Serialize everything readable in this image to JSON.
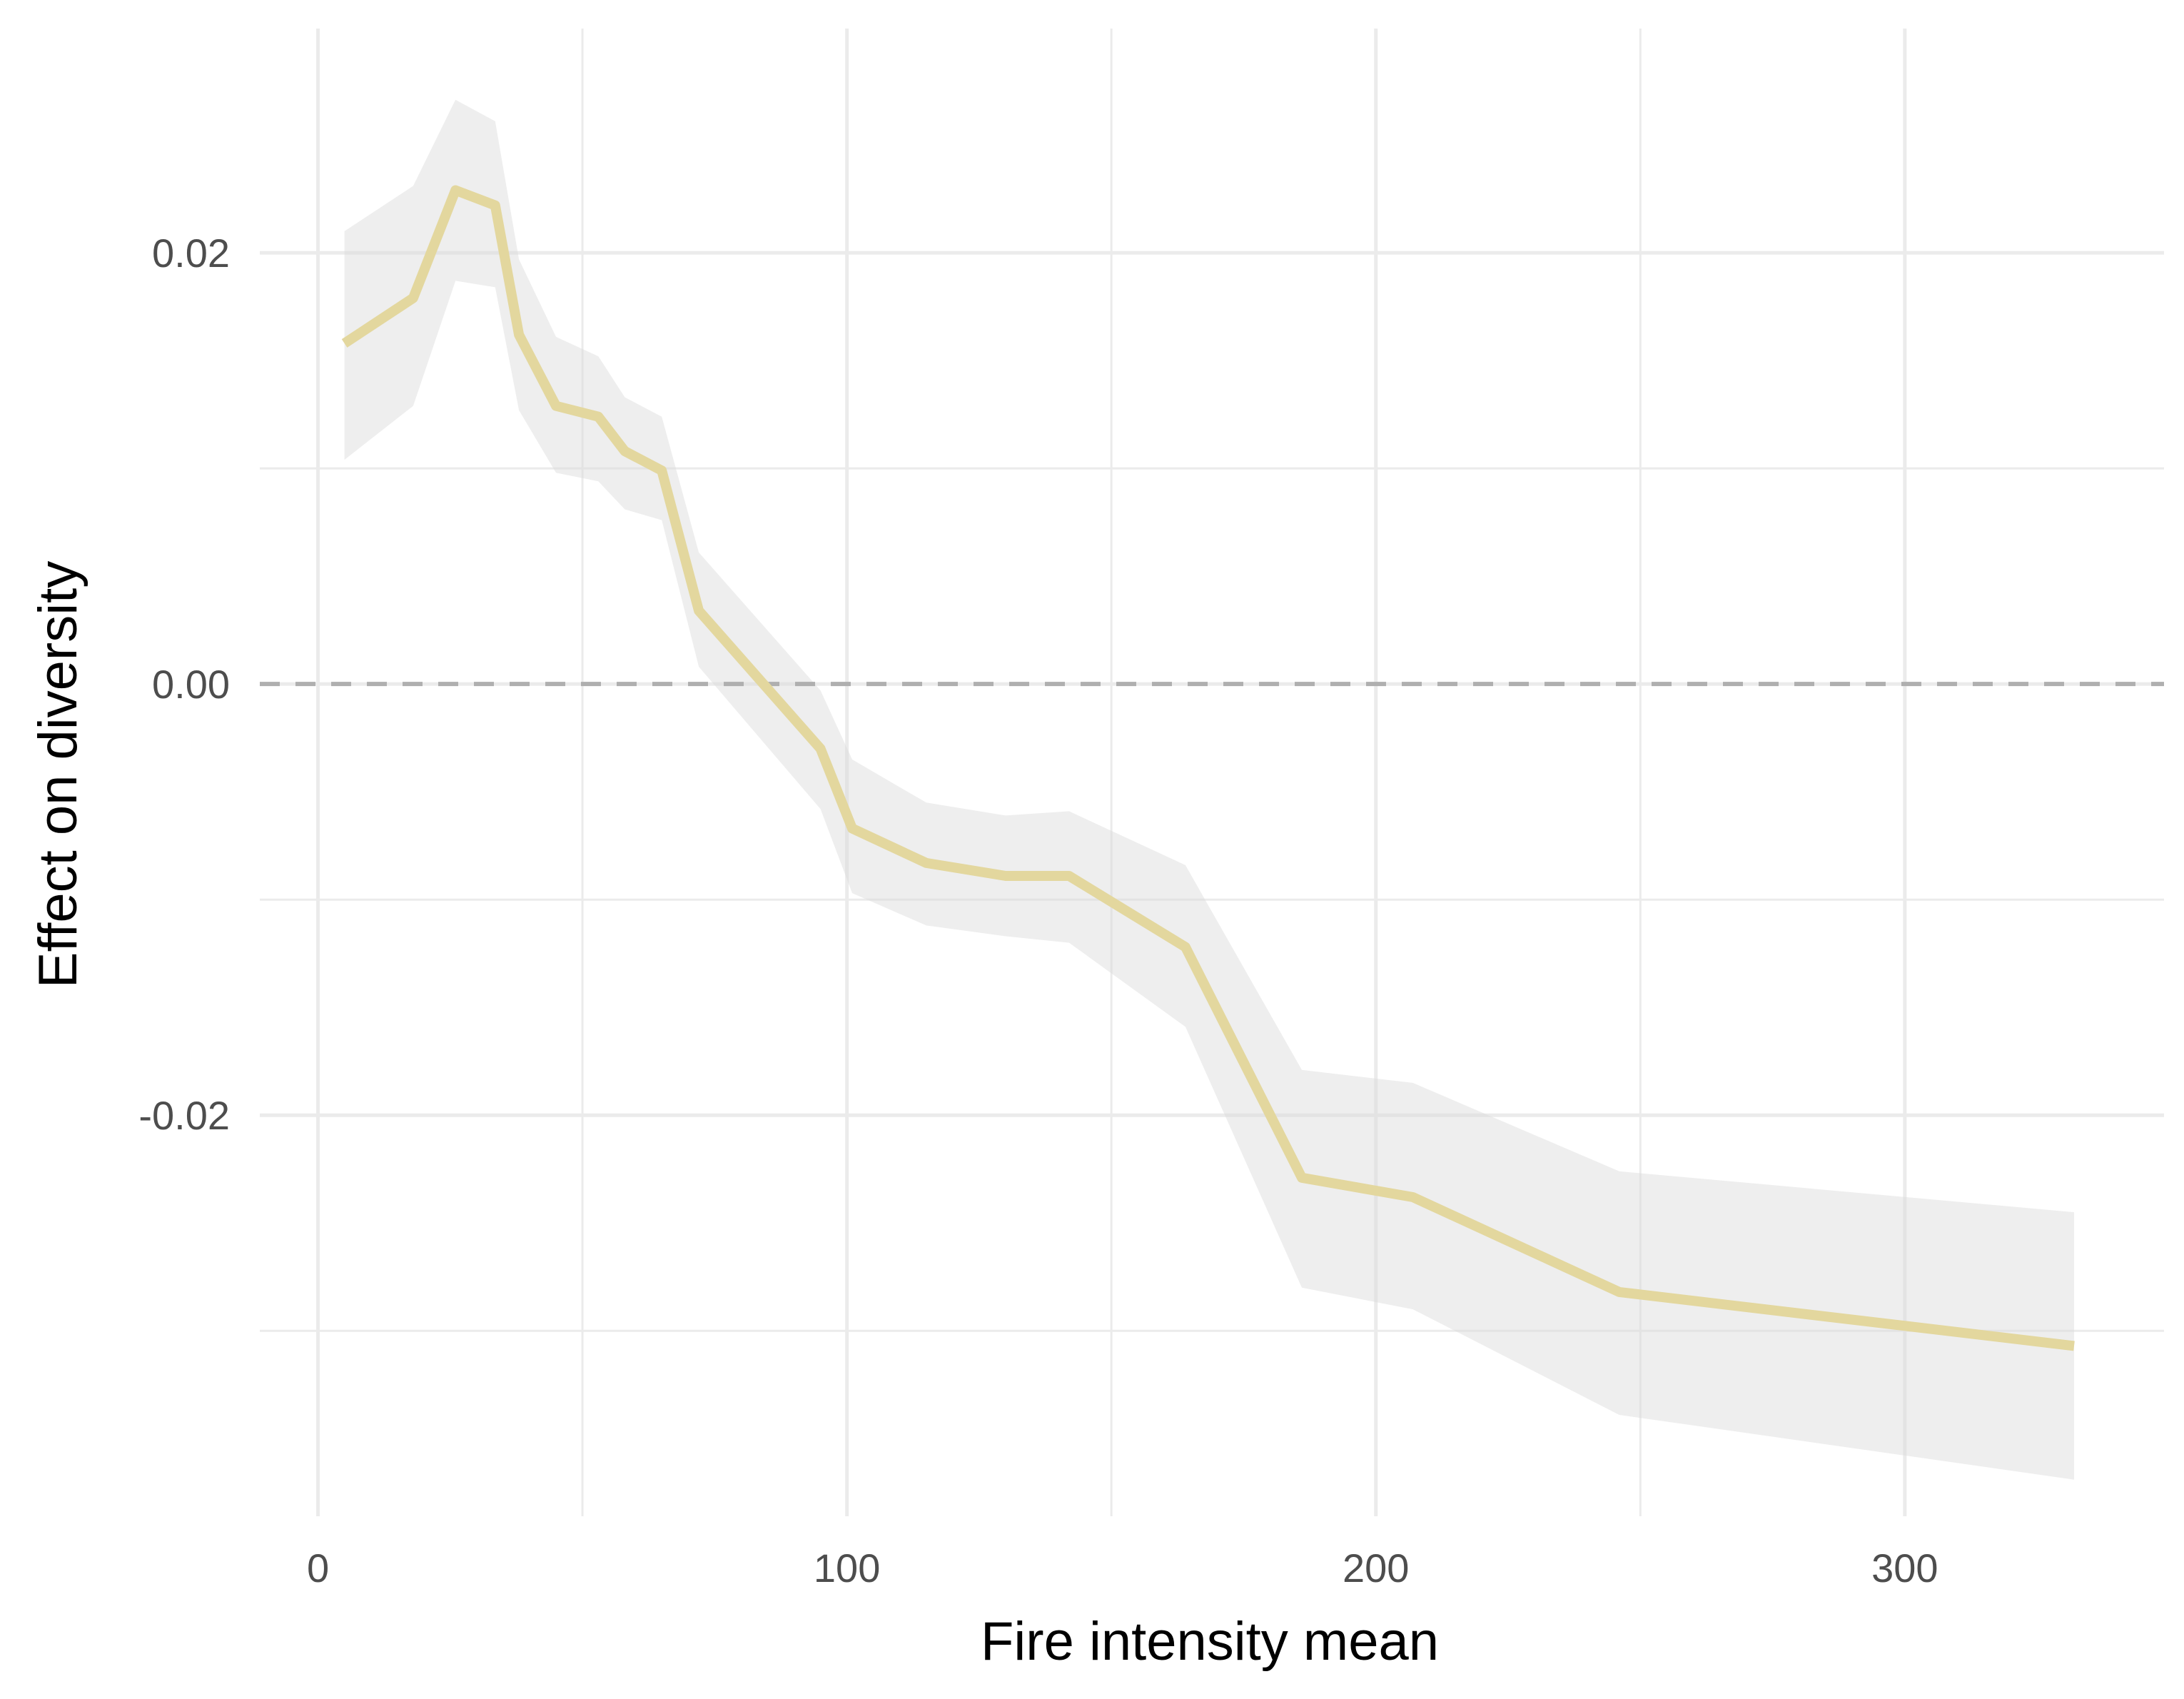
{
  "chart_data": {
    "type": "line",
    "xlabel": "Fire intensity mean",
    "ylabel": "Effect on diversity",
    "xlim": [
      -11,
      349
    ],
    "ylim": [
      -0.0386,
      0.0304
    ],
    "x_ticks": [
      0,
      100,
      200,
      300
    ],
    "x_tick_labels": [
      "0",
      "100",
      "200",
      "300"
    ],
    "x_minor_ticks": [
      50,
      150,
      250
    ],
    "y_ticks": [
      -0.02,
      0.0,
      0.02
    ],
    "y_tick_labels": [
      "-0.02",
      "0.00",
      "0.02"
    ],
    "y_minor_ticks": [
      -0.03,
      -0.01,
      0.01
    ],
    "grid": true,
    "reference_line": {
      "y": 0.0,
      "style": "dashed",
      "color": "#afafaf"
    },
    "series": [
      {
        "color": "#e3d79e",
        "band_color": "#ebebeb",
        "x": [
          5,
          18,
          26,
          33.5,
          38,
          45,
          53,
          58,
          65,
          72,
          95,
          101,
          115,
          130,
          142,
          164,
          186,
          207,
          246,
          332
        ],
        "y": [
          0.0158,
          0.0179,
          0.0229,
          0.0222,
          0.0162,
          0.0129,
          0.0124,
          0.0108,
          0.0099,
          0.0034,
          -0.003,
          -0.0067,
          -0.0083,
          -0.0089,
          -0.0089,
          -0.0122,
          -0.0229,
          -0.0238,
          -0.0282,
          -0.0307
        ],
        "lower": [
          0.0104,
          0.0129,
          0.0187,
          0.0184,
          0.0127,
          0.0098,
          0.0094,
          0.0081,
          0.0076,
          0.0008,
          -0.0058,
          -0.0097,
          -0.0112,
          -0.0117,
          -0.012,
          -0.0159,
          -0.028,
          -0.029,
          -0.0339,
          -0.0369
        ],
        "upper": [
          0.021,
          0.0231,
          0.0271,
          0.0261,
          0.0197,
          0.0161,
          0.0152,
          0.0133,
          0.0124,
          0.0061,
          -0.0003,
          -0.0035,
          -0.0055,
          -0.0061,
          -0.0059,
          -0.0084,
          -0.0179,
          -0.0185,
          -0.0226,
          -0.0245
        ]
      }
    ]
  }
}
